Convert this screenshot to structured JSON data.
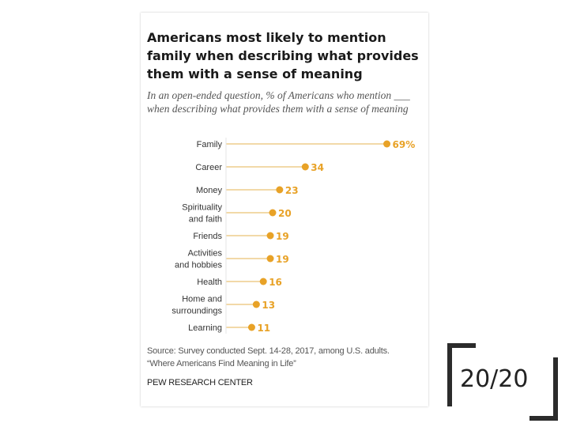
{
  "chart_data": {
    "type": "bar",
    "style": "dot-plot",
    "title": "Americans most likely to mention family when describing what provides them with a sense of meaning",
    "subtitle": "In an open-ended question, % of Americans who mention ___ when describing what provides them with a sense of meaning",
    "categories": [
      [
        "Family"
      ],
      [
        "Career"
      ],
      [
        "Money"
      ],
      [
        "Spirituality",
        "and faith"
      ],
      [
        "Friends"
      ],
      [
        "Activities",
        "and hobbies"
      ],
      [
        "Health"
      ],
      [
        "Home and",
        "surroundings"
      ],
      [
        "Learning"
      ]
    ],
    "values": [
      69,
      34,
      23,
      20,
      19,
      19,
      16,
      13,
      11
    ],
    "value_labels": [
      "69%",
      "34",
      "23",
      "20",
      "19",
      "19",
      "16",
      "13",
      "11"
    ],
    "xlabel": "",
    "ylabel": "",
    "xlim": [
      0,
      100
    ],
    "color": "#e8a227",
    "line_color": "#f2d9a8"
  },
  "source": {
    "line1": "Source: Survey conducted Sept. 14-28, 2017, among U.S. adults.",
    "line2": "“Where Americans Find Meaning in Life”"
  },
  "brand": "PEW RESEARCH CENTER",
  "slide_number": "20/20"
}
